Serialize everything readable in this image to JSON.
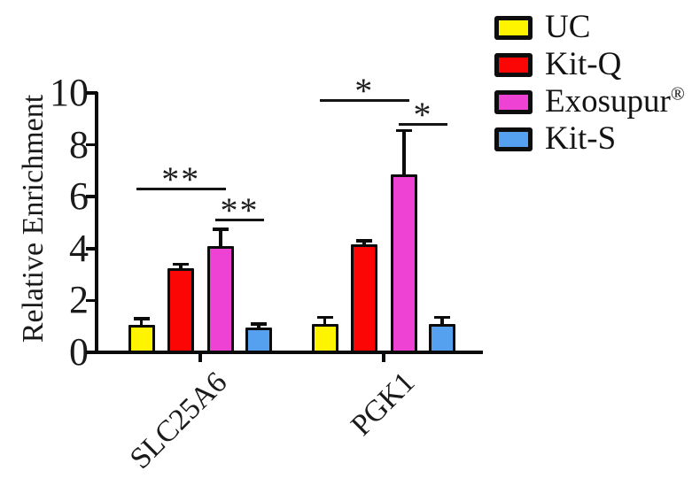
{
  "figure": {
    "ylabel": "Relative Enrichment",
    "legend": [
      {
        "label": "UC",
        "suffix": ""
      },
      {
        "label": "Kit-Q",
        "suffix": ""
      },
      {
        "label": "Exosupur",
        "suffix": "®"
      },
      {
        "label": "Kit-S",
        "suffix": ""
      }
    ]
  },
  "chart_data": {
    "type": "bar",
    "title": "",
    "categories": [
      "SLC25A6",
      "PGK1"
    ],
    "series": [
      {
        "name": "UC",
        "color": "#FFF400",
        "values": [
          1.05,
          1.1
        ],
        "errors": [
          0.25,
          0.25
        ]
      },
      {
        "name": "Kit-Q",
        "color": "#FB0505",
        "values": [
          3.25,
          4.15
        ],
        "errors": [
          0.15,
          0.15
        ]
      },
      {
        "name": "Exosupur®",
        "color": "#EE42D5",
        "values": [
          4.1,
          6.85
        ],
        "errors": [
          0.65,
          1.7
        ]
      },
      {
        "name": "Kit-S",
        "color": "#55A1F0",
        "values": [
          0.95,
          1.1
        ],
        "errors": [
          0.15,
          0.25
        ]
      }
    ],
    "xlabel": "",
    "ylabel": "Relative Enrichment",
    "ylim": [
      0,
      10
    ],
    "yticks": [
      0,
      2,
      4,
      6,
      8,
      10
    ],
    "grid": false,
    "error_bars": true,
    "legend_position": "top-right",
    "significance": [
      {
        "category": "SLC25A6",
        "label": "**",
        "from": "UC",
        "to": "Exosupur®"
      },
      {
        "category": "SLC25A6",
        "label": "**",
        "from": "Exosupur®",
        "to": "Kit-S"
      },
      {
        "category": "PGK1",
        "label": "*",
        "from": "UC",
        "to": "Exosupur®"
      },
      {
        "category": "PGK1",
        "label": "*",
        "from": "Exosupur®",
        "to": "Kit-S"
      }
    ]
  }
}
